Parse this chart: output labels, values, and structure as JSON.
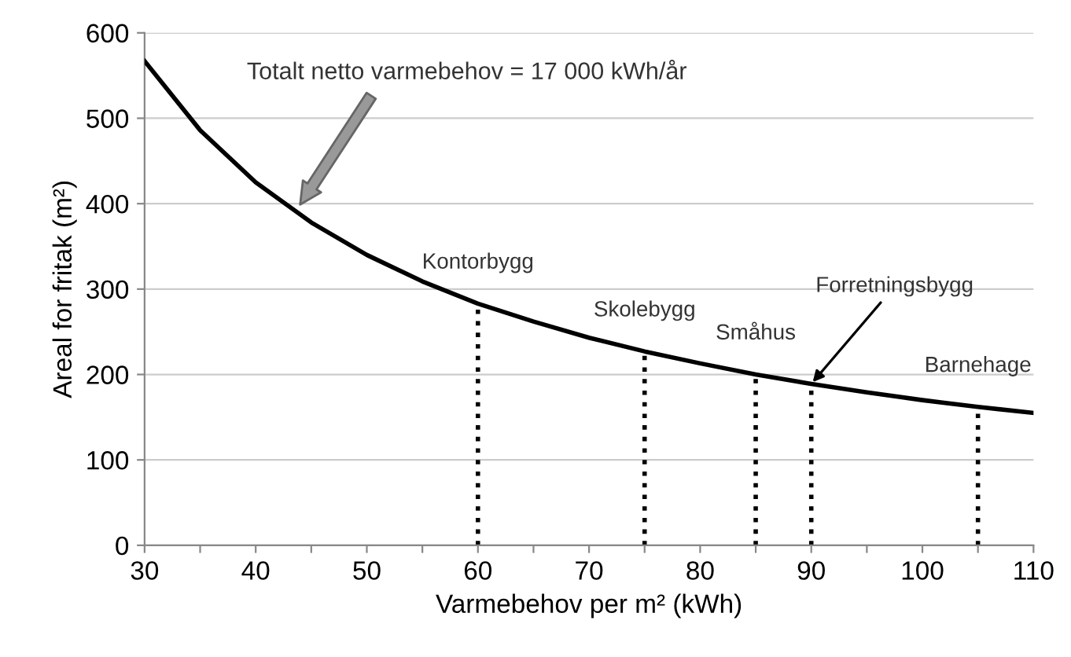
{
  "chart_data": {
    "type": "line",
    "xlabel": "Varmebehov per m² (kWh)",
    "ylabel": "Areal for fritak (m²)",
    "x": [
      30,
      35,
      40,
      45,
      50,
      55,
      60,
      65,
      70,
      75,
      80,
      85,
      90,
      95,
      100,
      105,
      110
    ],
    "series": [
      {
        "color": "#000000",
        "values": [
          567,
          486,
          425,
          378,
          340,
          309,
          283,
          262,
          243,
          227,
          213,
          200,
          189,
          179,
          170,
          162,
          155
        ]
      }
    ],
    "xlim": [
      30,
      110
    ],
    "ylim": [
      0,
      600
    ],
    "xticks": [
      30,
      {
        "value": 35,
        "label": null
      },
      40,
      {
        "value": 45,
        "label": null
      },
      50,
      {
        "value": 55,
        "label": null
      },
      60,
      {
        "value": 65,
        "label": null
      },
      70,
      {
        "value": 75,
        "label": null
      },
      80,
      {
        "value": 85,
        "label": null
      },
      90,
      {
        "value": 95,
        "label": null
      },
      100,
      {
        "value": 105,
        "label": null
      },
      110
    ],
    "yticks": [
      0,
      100,
      200,
      300,
      400,
      500,
      600
    ],
    "grid": "y",
    "marker": "none",
    "line_style": "solid",
    "ref_lines": [
      {
        "axis": "x",
        "value": 60,
        "line_style": "dotted",
        "color": "#000000"
      },
      {
        "axis": "x",
        "value": 75,
        "line_style": "dotted",
        "color": "#000000"
      },
      {
        "axis": "x",
        "value": 85,
        "line_style": "dotted",
        "color": "#000000"
      },
      {
        "axis": "x",
        "value": 90,
        "line_style": "dotted",
        "color": "#000000"
      },
      {
        "axis": "x",
        "value": 105,
        "line_style": "dotted",
        "color": "#000000"
      }
    ],
    "annotations": [
      "Totalt netto varmebehov = 17 000 kWh/år",
      {
        "text": "Kontorbygg",
        "x": 60,
        "y": 283
      },
      {
        "text": "Skolebygg",
        "x": 75,
        "y": 227
      },
      {
        "text": "Småhus",
        "x": 85,
        "y": 200
      },
      {
        "text": "Forretningsbygg",
        "x": 90,
        "y": 189
      },
      {
        "text": "Barnehage",
        "x": 105,
        "y": 162
      }
    ]
  }
}
